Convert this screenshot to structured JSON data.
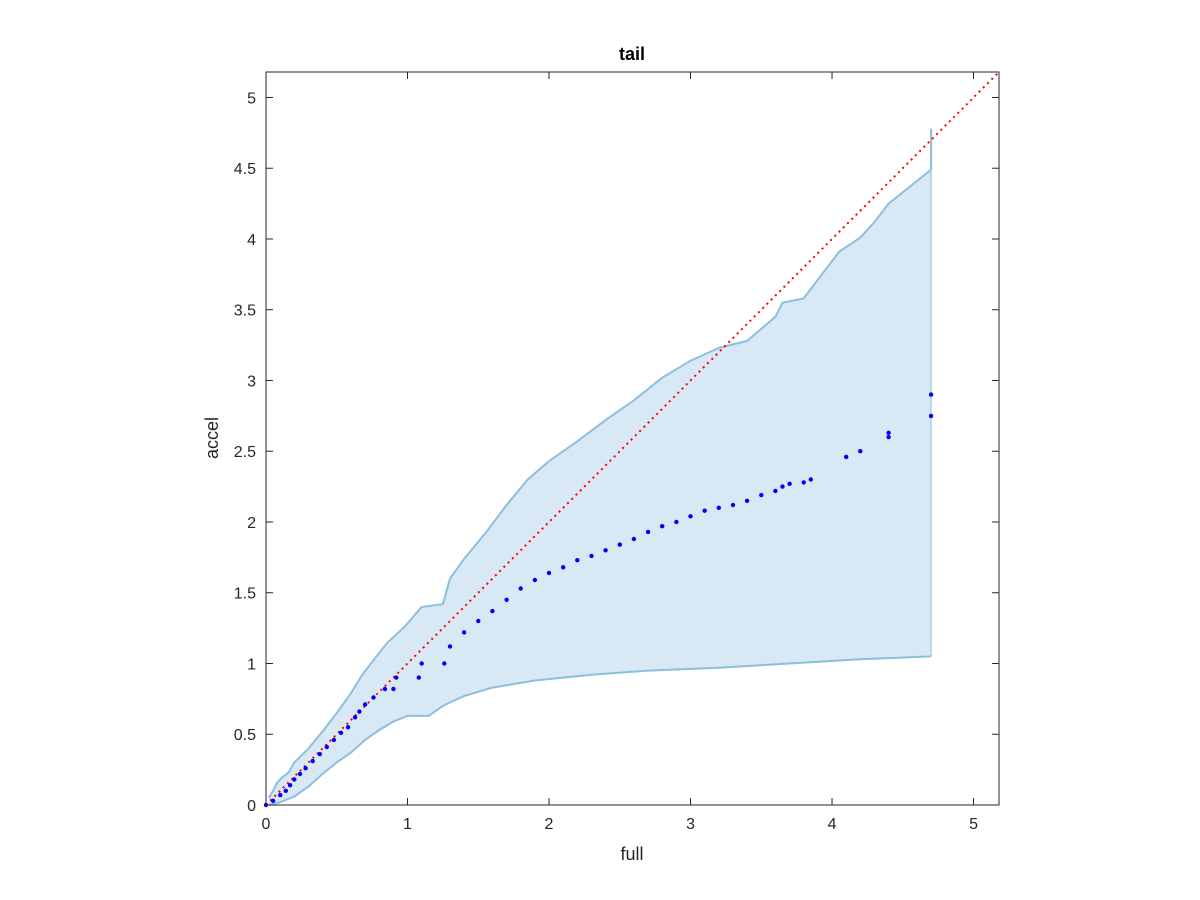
{
  "chart_data": {
    "type": "scatter",
    "title": "tail",
    "xlabel": "full",
    "ylabel": "accel",
    "xlim": [
      0,
      5.18
    ],
    "ylim": [
      0,
      5.18
    ],
    "xticks": [
      "0",
      "1",
      "2",
      "3",
      "4",
      "5"
    ],
    "yticks": [
      "0",
      "0.5",
      "1",
      "1.5",
      "2",
      "2.5",
      "3",
      "3.5",
      "4",
      "4.5",
      "5"
    ],
    "grid": false,
    "legend": "none",
    "colors": {
      "points": "#0000ff",
      "band_fill": "#d8e8f4",
      "band_edge": "#8cbfdd",
      "reference": "#ff0000",
      "axes": "#262626"
    },
    "reference_line": {
      "style": "dotted",
      "from": [
        0,
        0
      ],
      "to": [
        5.18,
        5.18
      ]
    },
    "band_upper": [
      [
        0.02,
        0.05
      ],
      [
        0.05,
        0.1
      ],
      [
        0.08,
        0.16
      ],
      [
        0.12,
        0.2
      ],
      [
        0.16,
        0.23
      ],
      [
        0.2,
        0.3
      ],
      [
        0.3,
        0.4
      ],
      [
        0.4,
        0.52
      ],
      [
        0.5,
        0.65
      ],
      [
        0.6,
        0.79
      ],
      [
        0.68,
        0.92
      ],
      [
        0.78,
        1.05
      ],
      [
        0.86,
        1.15
      ],
      [
        0.98,
        1.26
      ],
      [
        1.1,
        1.4
      ],
      [
        1.25,
        1.42
      ],
      [
        1.3,
        1.6
      ],
      [
        1.4,
        1.74
      ],
      [
        1.55,
        1.92
      ],
      [
        1.7,
        2.12
      ],
      [
        1.85,
        2.3
      ],
      [
        2.0,
        2.43
      ],
      [
        2.2,
        2.57
      ],
      [
        2.4,
        2.72
      ],
      [
        2.6,
        2.86
      ],
      [
        2.8,
        3.02
      ],
      [
        3.0,
        3.14
      ],
      [
        3.2,
        3.23
      ],
      [
        3.4,
        3.28
      ],
      [
        3.6,
        3.45
      ],
      [
        3.65,
        3.55
      ],
      [
        3.8,
        3.58
      ],
      [
        4.05,
        3.91
      ],
      [
        4.2,
        4.01
      ],
      [
        4.3,
        4.12
      ],
      [
        4.4,
        4.25
      ],
      [
        4.7,
        4.49
      ],
      [
        4.7,
        4.78
      ]
    ],
    "band_lower": [
      [
        0.02,
        0.0
      ],
      [
        0.1,
        0.02
      ],
      [
        0.2,
        0.06
      ],
      [
        0.3,
        0.13
      ],
      [
        0.4,
        0.22
      ],
      [
        0.5,
        0.3
      ],
      [
        0.6,
        0.37
      ],
      [
        0.7,
        0.46
      ],
      [
        0.8,
        0.53
      ],
      [
        0.9,
        0.59
      ],
      [
        1.0,
        0.63
      ],
      [
        1.15,
        0.63
      ],
      [
        1.25,
        0.7
      ],
      [
        1.4,
        0.77
      ],
      [
        1.6,
        0.83
      ],
      [
        1.9,
        0.88
      ],
      [
        2.3,
        0.92
      ],
      [
        2.7,
        0.95
      ],
      [
        3.2,
        0.97
      ],
      [
        3.7,
        1.0
      ],
      [
        4.2,
        1.03
      ],
      [
        4.7,
        1.05
      ]
    ],
    "points": [
      [
        0.0,
        0.0
      ],
      [
        0.05,
        0.03
      ],
      [
        0.1,
        0.07
      ],
      [
        0.14,
        0.1
      ],
      [
        0.17,
        0.14
      ],
      [
        0.2,
        0.18
      ],
      [
        0.24,
        0.22
      ],
      [
        0.28,
        0.26
      ],
      [
        0.33,
        0.31
      ],
      [
        0.38,
        0.36
      ],
      [
        0.43,
        0.41
      ],
      [
        0.48,
        0.46
      ],
      [
        0.53,
        0.51
      ],
      [
        0.58,
        0.55
      ],
      [
        0.63,
        0.62
      ],
      [
        0.66,
        0.66
      ],
      [
        0.7,
        0.71
      ],
      [
        0.76,
        0.76
      ],
      [
        0.84,
        0.82
      ],
      [
        0.9,
        0.82
      ],
      [
        0.92,
        0.9
      ],
      [
        1.08,
        0.9
      ],
      [
        1.1,
        1.0
      ],
      [
        1.26,
        1.0
      ],
      [
        1.3,
        1.12
      ],
      [
        1.4,
        1.22
      ],
      [
        1.5,
        1.3
      ],
      [
        1.6,
        1.37
      ],
      [
        1.7,
        1.45
      ],
      [
        1.8,
        1.53
      ],
      [
        1.9,
        1.59
      ],
      [
        2.0,
        1.64
      ],
      [
        2.1,
        1.68
      ],
      [
        2.2,
        1.73
      ],
      [
        2.3,
        1.76
      ],
      [
        2.4,
        1.8
      ],
      [
        2.5,
        1.84
      ],
      [
        2.6,
        1.88
      ],
      [
        2.7,
        1.93
      ],
      [
        2.8,
        1.97
      ],
      [
        2.9,
        2.0
      ],
      [
        3.0,
        2.04
      ],
      [
        3.1,
        2.08
      ],
      [
        3.2,
        2.1
      ],
      [
        3.3,
        2.12
      ],
      [
        3.4,
        2.15
      ],
      [
        3.5,
        2.19
      ],
      [
        3.6,
        2.22
      ],
      [
        3.65,
        2.25
      ],
      [
        3.7,
        2.27
      ],
      [
        3.8,
        2.28
      ],
      [
        3.85,
        2.3
      ],
      [
        4.1,
        2.46
      ],
      [
        4.2,
        2.5
      ],
      [
        4.4,
        2.6
      ],
      [
        4.4,
        2.63
      ],
      [
        4.7,
        2.75
      ],
      [
        4.7,
        2.9
      ]
    ]
  }
}
